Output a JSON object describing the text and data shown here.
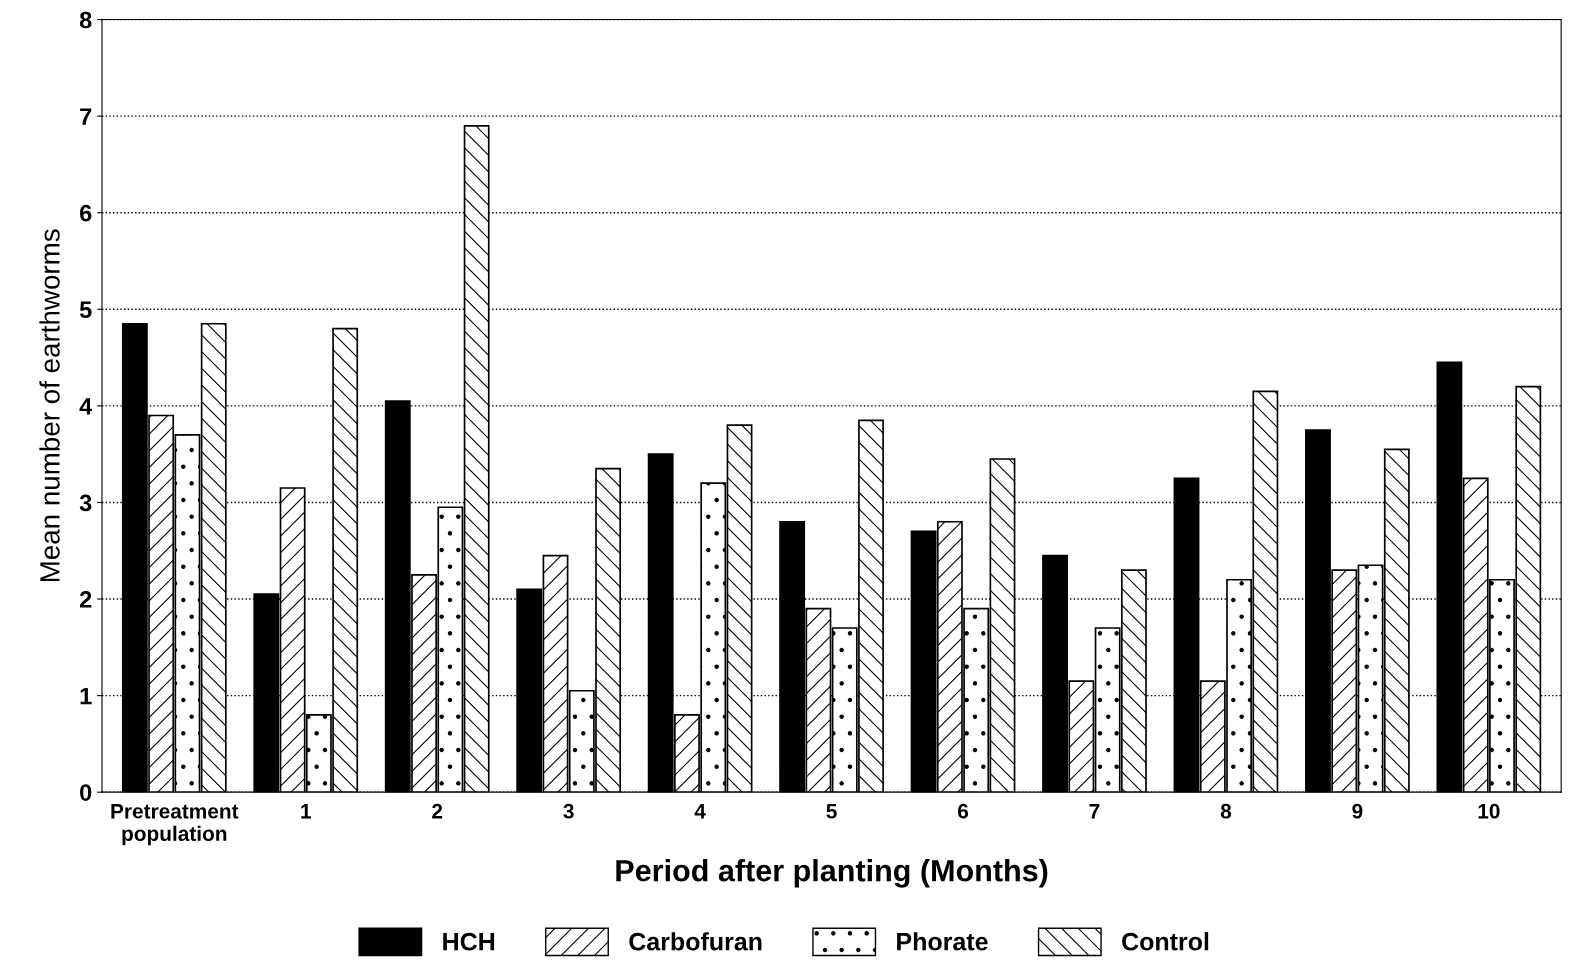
{
  "chart_data": {
    "type": "bar",
    "xlabel": "Period after planting (Months)",
    "ylabel": "Mean number of earthworms",
    "categories": [
      "Pretreatment\npopulation",
      "1",
      "2",
      "3",
      "4",
      "5",
      "6",
      "7",
      "8",
      "9",
      "10"
    ],
    "series": [
      {
        "name": "HCH",
        "color": "#000000",
        "values": [
          4.85,
          2.05,
          4.05,
          2.1,
          3.5,
          2.8,
          2.7,
          2.45,
          3.25,
          3.75,
          4.45
        ]
      },
      {
        "name": "Carbofuran",
        "color": "#000000",
        "values": [
          3.9,
          3.15,
          2.25,
          2.45,
          0.8,
          1.9,
          2.8,
          1.15,
          1.15,
          2.3,
          3.25
        ]
      },
      {
        "name": "Phorate",
        "color": "#000000",
        "values": [
          3.7,
          0.8,
          2.95,
          1.05,
          3.2,
          1.7,
          1.9,
          1.7,
          2.2,
          2.35,
          2.2
        ]
      },
      {
        "name": "Control",
        "color": "#000000",
        "values": [
          4.85,
          4.8,
          6.9,
          3.35,
          3.8,
          3.85,
          3.45,
          2.3,
          4.15,
          3.55,
          4.2
        ]
      }
    ],
    "ylim": [
      0,
      8
    ],
    "yticks": [
      0,
      1,
      2,
      3,
      4,
      5,
      6,
      7,
      8
    ],
    "grid": "y",
    "legend": "bottom"
  }
}
